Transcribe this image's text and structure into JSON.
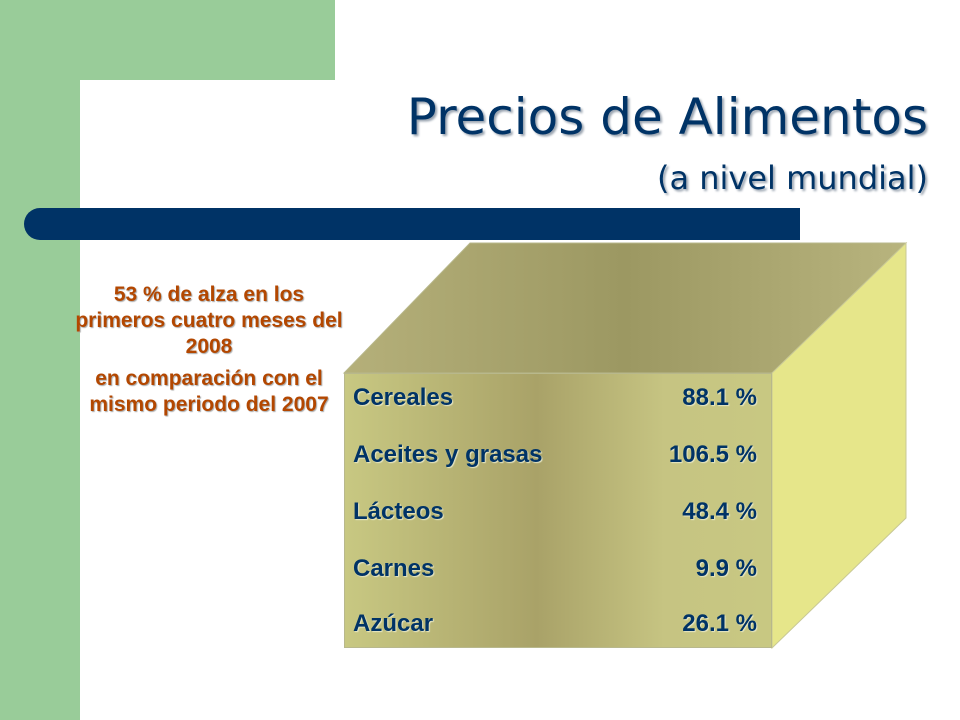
{
  "slide": {
    "title": "Precios de Alimentos",
    "subtitle": "(a nivel mundial)"
  },
  "callout": {
    "line1": "53 % de alza en los primeros cuatro meses del 2008",
    "line2": "en comparación con el mismo periodo del 2007"
  },
  "table": {
    "rows": [
      {
        "label": "Cereales",
        "value": "88.1 %"
      },
      {
        "label": "Aceites y grasas",
        "value": "106.5 %"
      },
      {
        "label": "Lácteos",
        "value": "48.4 %"
      },
      {
        "label": "Carnes",
        "value": "9.9 %"
      },
      {
        "label": "Azúcar",
        "value": "26.1 %"
      }
    ]
  },
  "colors": {
    "title": "#003366",
    "accent_bar": "#003366",
    "left_band": "#99cc99",
    "callout_text": "#b34700",
    "panel_face": "#a9a268",
    "panel_side": "#e6e68a"
  }
}
